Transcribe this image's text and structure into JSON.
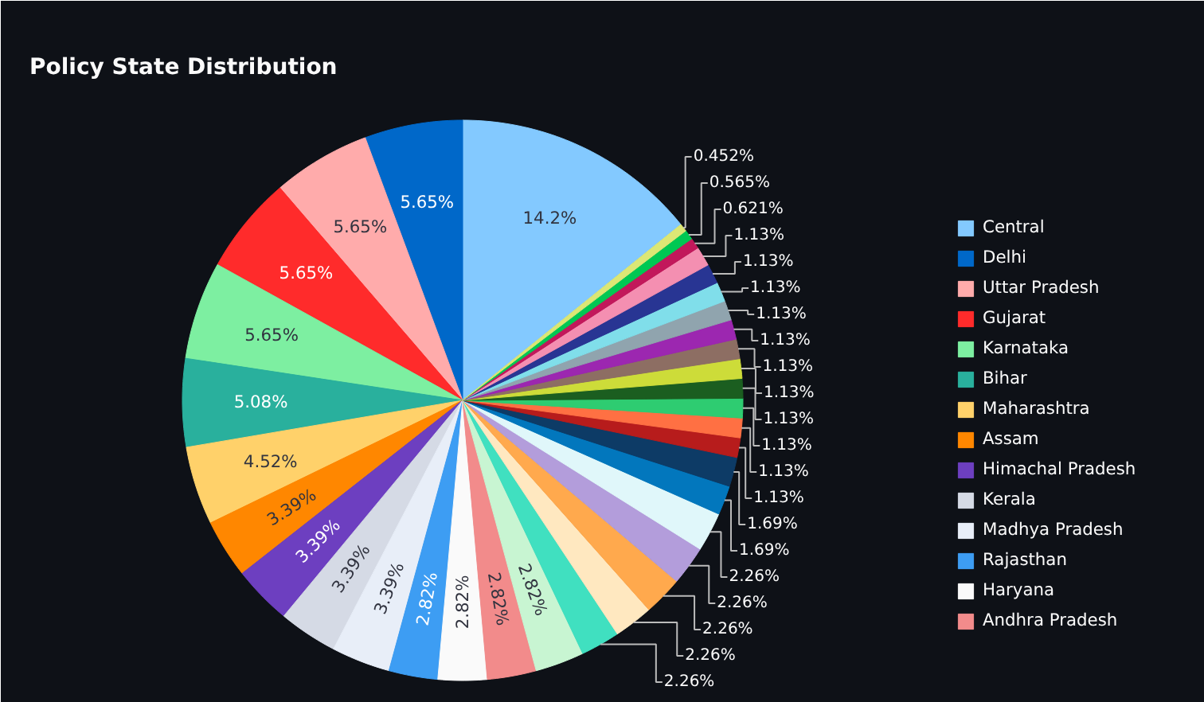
{
  "chart_data": {
    "type": "pie",
    "title": "Policy State Distribution",
    "categories": [
      "Central",
      "Delhi",
      "Uttar Pradesh",
      "Gujarat",
      "Karnataka",
      "Bihar",
      "Maharashtra",
      "Assam",
      "Himachal Pradesh",
      "Kerala",
      "Madhya Pradesh",
      "Rajasthan",
      "Haryana",
      "Andhra Pradesh",
      null,
      null,
      null,
      null,
      null,
      null,
      null,
      null,
      null,
      null,
      null,
      null,
      null,
      null,
      null,
      null,
      null,
      null,
      null,
      null,
      null,
      null
    ],
    "values": [
      14.2,
      5.65,
      5.65,
      5.65,
      5.65,
      5.08,
      4.52,
      3.39,
      3.39,
      3.39,
      3.39,
      2.82,
      2.82,
      2.82,
      2.82,
      2.26,
      2.26,
      2.26,
      2.26,
      2.26,
      1.69,
      1.69,
      1.13,
      1.13,
      1.13,
      1.13,
      1.13,
      1.13,
      1.13,
      1.13,
      1.13,
      1.13,
      1.13,
      0.621,
      0.565,
      0.452
    ],
    "colors": [
      "#83c9ff",
      "#0068c9",
      "#ffabab",
      "#ff2b2b",
      "#7defa1",
      "#29b09d",
      "#ffd16a",
      "#ff8700",
      "#6d3fc0",
      "#d5dae5",
      "#e8eef8",
      "#3d9df3",
      "#fafafa",
      "#f28b8b",
      "#c8f5d2",
      "#40e0c0",
      "#ffe8c0",
      "#ffa94d",
      "#b39ddb",
      "#e0f7fa",
      "#0277bd",
      "#0d3b66",
      "#b71c1c",
      "#ff7043",
      "#2ecc71",
      "#1b5e20",
      "#cddc39",
      "#8d6e63",
      "#9c27b0",
      "#90a4ae",
      "#80deea",
      "#283593",
      "#f48fb1",
      "#c2185b",
      "#00c853",
      "#dce775"
    ],
    "value_labels": [
      "14.2%",
      "5.65%",
      "5.65%",
      "5.65%",
      "5.65%",
      "5.08%",
      "4.52%",
      "3.39%",
      "3.39%",
      "3.39%",
      "3.39%",
      "2.82%",
      "2.82%",
      "2.82%",
      "2.82%",
      "2.26%",
      "2.26%",
      "2.26%",
      "2.26%",
      "2.26%",
      "1.69%",
      "1.69%",
      "1.13%",
      "1.13%",
      "1.13%",
      "1.13%",
      "1.13%",
      "1.13%",
      "1.13%",
      "1.13%",
      "1.13%",
      "1.13%",
      "1.13%",
      "0.621%",
      "0.565%",
      "0.452%"
    ],
    "legend": "right"
  }
}
